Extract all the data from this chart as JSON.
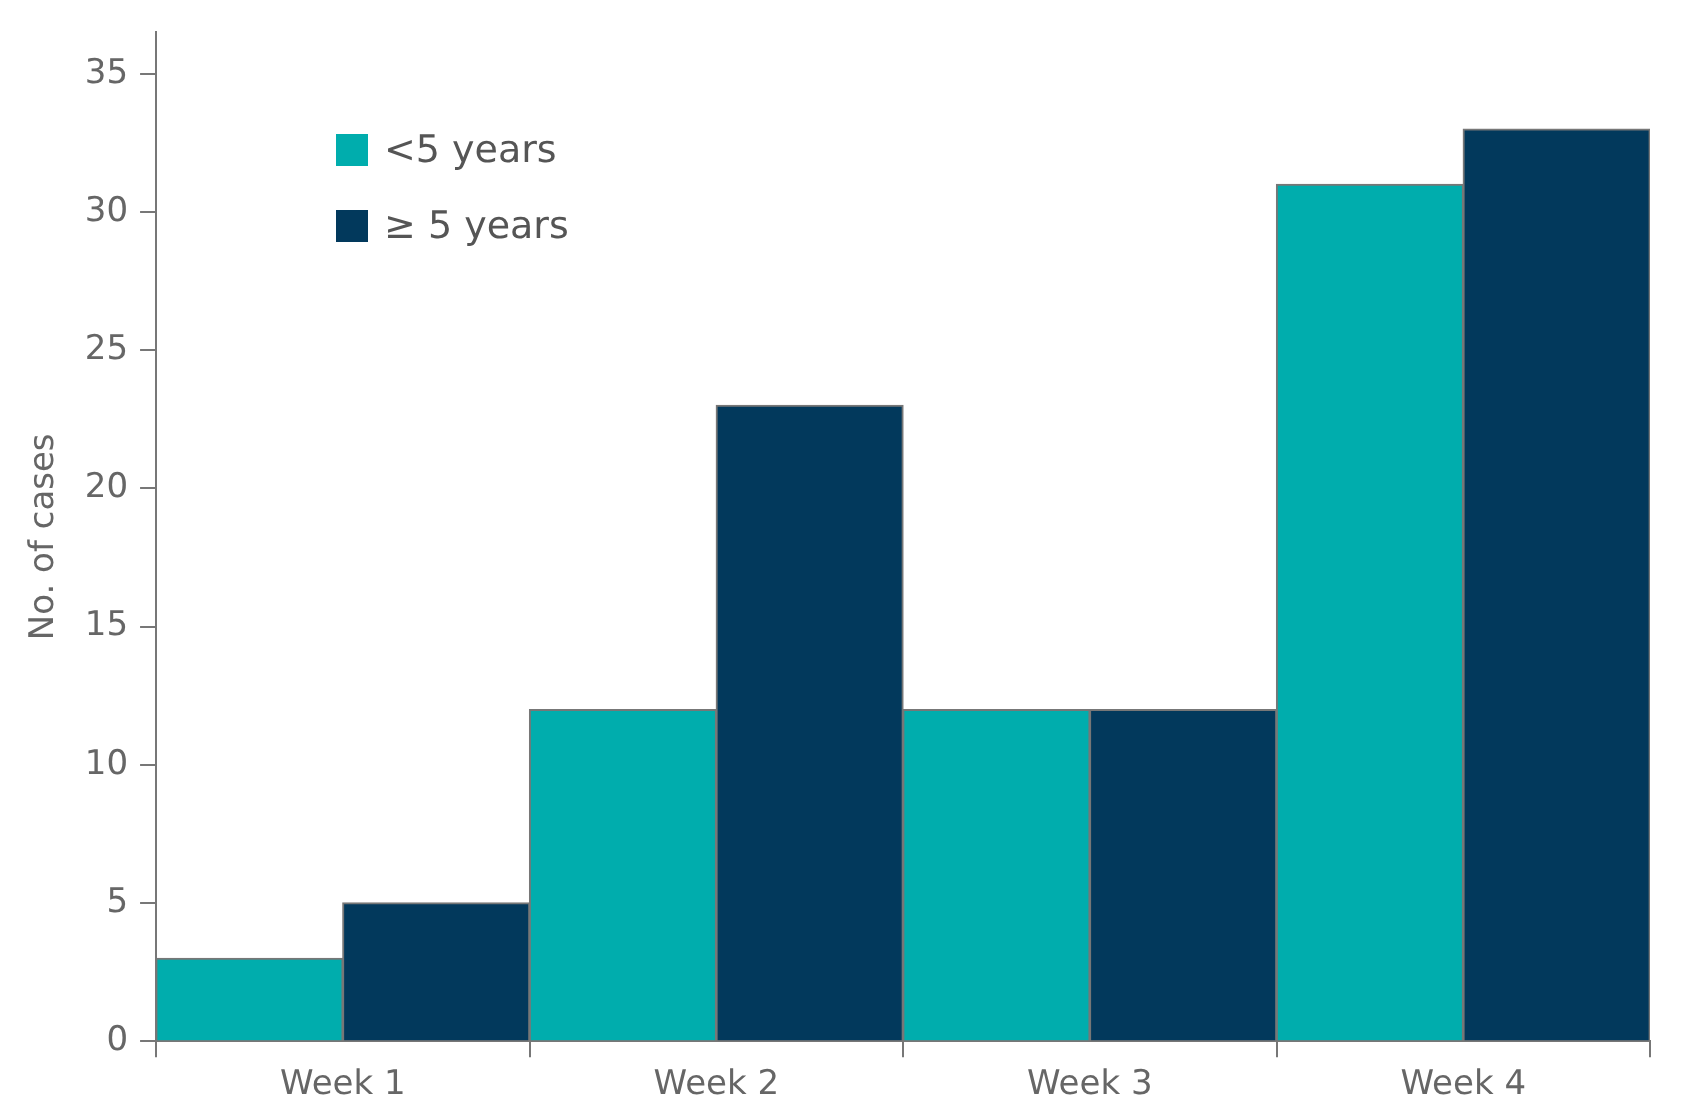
{
  "chart_data": {
    "type": "bar",
    "ylabel": "No. of cases",
    "categories": [
      "Week 1",
      "Week 2",
      "Week 3",
      "Week 4"
    ],
    "series": [
      {
        "name": "<5 years",
        "color": "#00adad",
        "values": [
          3,
          12,
          12,
          31
        ]
      },
      {
        "name": "≥ 5 years",
        "color": "#02395c",
        "values": [
          5,
          23,
          12,
          33
        ]
      }
    ],
    "ylim": [
      0,
      36.5
    ],
    "yticks": [
      0,
      5,
      10,
      15,
      20,
      25,
      30,
      35
    ],
    "grid": false,
    "legend": "top left"
  }
}
